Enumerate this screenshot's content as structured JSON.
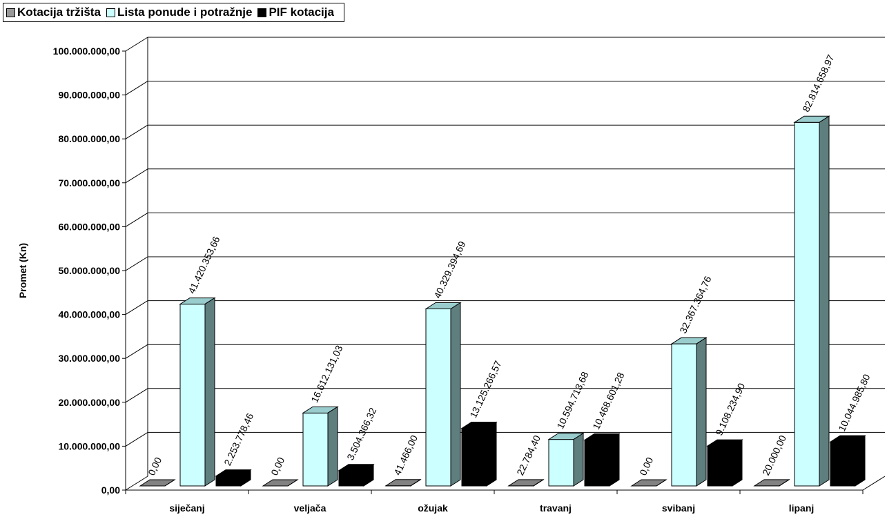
{
  "chart_data": {
    "type": "bar",
    "ylabel": "Promet (Kn)",
    "xlabel": "",
    "ylim": [
      0,
      100000000
    ],
    "yticks": [
      "0,00",
      "10.000.000,00",
      "20.000.000,00",
      "30.000.000,00",
      "40.000.000,00",
      "50.000.000,00",
      "60.000.000,00",
      "70.000.000,00",
      "80.000.000,00",
      "90.000.000,00",
      "100.000.000,00"
    ],
    "categories": [
      "siječanj",
      "veljača",
      "ožujak",
      "travanj",
      "svibanj",
      "lipanj"
    ],
    "legend_position": "top-left",
    "grid": true,
    "series": [
      {
        "name": "Kotacija tržišta",
        "color": "#999999",
        "values": [
          0,
          0,
          41466,
          22784.4,
          0,
          20000
        ],
        "labels": [
          "0,00",
          "0,00",
          "41.466,00",
          "22.784,40",
          "0,00",
          "20.000,00"
        ]
      },
      {
        "name": "Lista ponude i potražnje",
        "color": "#ccffff",
        "values": [
          41420353.66,
          16612131.03,
          40329394.69,
          10594713.68,
          32367364.76,
          82814658.97
        ],
        "labels": [
          "41.420.353,66",
          "16.612.131,03",
          "40.329.394,69",
          "10.594.713,68",
          "32.367.364,76",
          "82.814.658,97"
        ]
      },
      {
        "name": "PIF kotacija",
        "color": "#000000",
        "values": [
          2253778.46,
          3504366.32,
          13125266.57,
          10468601.28,
          9108234.9,
          10044985.8
        ],
        "labels": [
          "2.253.778,46",
          "3.504.366,32",
          "13.125.266,57",
          "10.468.601,28",
          "9.108.234,90",
          "10.044.985,80"
        ]
      }
    ]
  }
}
